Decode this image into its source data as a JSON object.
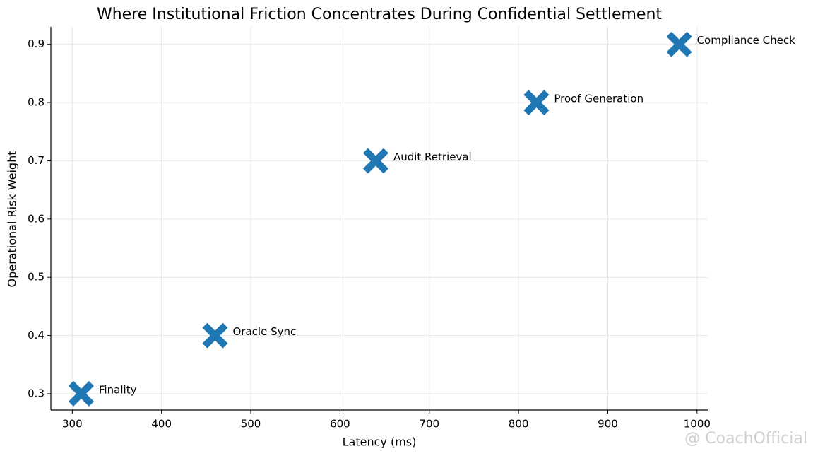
{
  "chart_data": {
    "type": "scatter",
    "title": "Where Institutional Friction Concentrates During Confidential Settlement",
    "xlabel": "Latency (ms)",
    "ylabel": "Operational Risk Weight",
    "labels": [
      "Finality",
      "Oracle Sync",
      "Audit Retrieval",
      "Proof Generation",
      "Compliance Check"
    ],
    "x": [
      310,
      460,
      640,
      820,
      980
    ],
    "values": [
      0.3,
      0.4,
      0.7,
      0.8,
      0.9
    ],
    "color": "#1f77b4",
    "xlim": [
      276,
      1012
    ],
    "xticks": [
      300,
      400,
      500,
      600,
      700,
      800,
      900,
      1000
    ],
    "ylim": [
      0.272,
      0.93
    ],
    "yticks": [
      0.3,
      0.4,
      0.5,
      0.6,
      0.7,
      0.8,
      0.9
    ],
    "grid": true,
    "watermark": "@ CoachOfficial"
  }
}
